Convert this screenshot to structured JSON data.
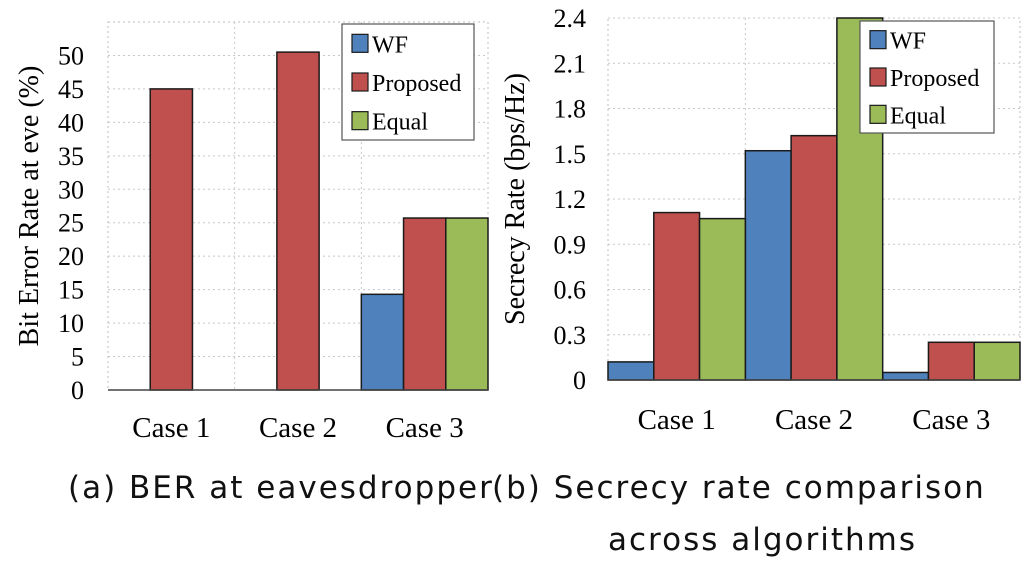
{
  "chart_data": [
    {
      "type": "bar",
      "categories": [
        "Case 1",
        "Case 2",
        "Case 3"
      ],
      "series": [
        {
          "name": "WF",
          "values": [
            0,
            0,
            14.3
          ]
        },
        {
          "name": "Proposed",
          "values": [
            45,
            50.5,
            25.7
          ]
        },
        {
          "name": "Equal",
          "values": [
            0,
            0,
            25.7
          ]
        }
      ],
      "ylabel": "Bit Error Rate at eve (%)",
      "xlabel": "",
      "ylim": [
        0,
        55
      ],
      "yticks": [
        "0",
        "5",
        "10",
        "15",
        "20",
        "25",
        "30",
        "35",
        "40",
        "45",
        "50"
      ],
      "grid": true,
      "legend": "top-right",
      "colors": {
        "WF": "#4f81bd",
        "Proposed": "#c0504d",
        "Equal": "#9bbb59"
      }
    },
    {
      "type": "bar",
      "categories": [
        "Case 1",
        "Case 2",
        "Case 3"
      ],
      "series": [
        {
          "name": "WF",
          "values": [
            0.12,
            1.52,
            0.05
          ]
        },
        {
          "name": "Proposed",
          "values": [
            1.11,
            1.62,
            0.25
          ]
        },
        {
          "name": "Equal",
          "values": [
            1.07,
            2.4,
            0.25
          ]
        }
      ],
      "ylabel": "Secrecy Rate (bps/Hz)",
      "xlabel": "",
      "ylim": [
        0,
        2.4
      ],
      "yticks": [
        "0",
        "0.3",
        "0.6",
        "0.9",
        "1.2",
        "1.5",
        "1.8",
        "2.1",
        "2.4"
      ],
      "grid": true,
      "legend": "top-right",
      "colors": {
        "WF": "#4f81bd",
        "Proposed": "#c0504d",
        "Equal": "#9bbb59"
      }
    }
  ],
  "captions": {
    "a": "(a) BER at eavesdropper",
    "b_line1": "(b) Secrecy rate comparison",
    "b_line2": "across algorithms"
  }
}
